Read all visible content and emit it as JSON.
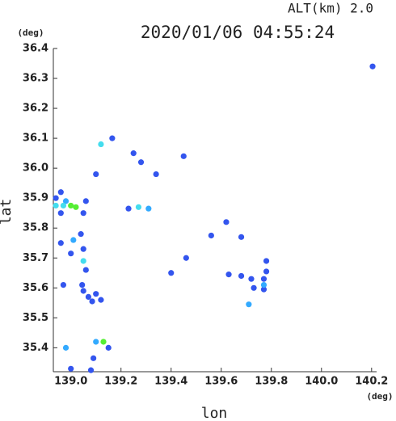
{
  "chart_data": {
    "type": "scatter",
    "title": "2020/01/06 04:55:24",
    "subtitle": "ALT(km) 2.0",
    "x_label": "lon",
    "y_label": "lat",
    "x_unit": "(deg)",
    "y_unit": "(deg)",
    "xlim": [
      138.93,
      140.22
    ],
    "ylim": [
      35.32,
      36.4
    ],
    "xticks": [
      {
        "value": 139.0,
        "label": "139.0"
      },
      139.2,
      139.4,
      139.6,
      139.8,
      {
        "value": 140.0,
        "label": "140.0"
      },
      140.2
    ],
    "yticks": [
      35.4,
      35.5,
      35.6,
      35.7,
      35.8,
      35.9,
      {
        "value": 36.0,
        "label": "36.0"
      },
      36.1,
      36.2,
      36.3,
      36.4
    ],
    "series": [
      {
        "color": "#3355ee",
        "x": [
          140.204,
          139.165,
          139.45,
          139.25,
          139.28,
          139.34,
          139.1,
          138.94,
          138.96,
          139.06,
          139.23,
          139.62,
          138.96,
          139.05,
          139.04,
          138.96,
          139.05,
          139.0,
          139.06,
          138.97,
          139.045,
          139.05,
          139.07,
          139.12,
          139.085,
          139.1,
          139.4,
          139.46,
          139.63,
          139.68,
          139.78,
          139.78,
          139.68,
          139.56,
          139.73,
          139.77,
          139.72,
          139.77,
          139.15,
          139.09,
          139.0,
          139.08
        ],
        "values": [
          36.34,
          36.1,
          36.04,
          36.05,
          36.02,
          35.98,
          35.98,
          35.9,
          35.92,
          35.89,
          35.865,
          35.82,
          35.85,
          35.85,
          35.78,
          35.75,
          35.73,
          35.715,
          35.66,
          35.61,
          35.61,
          35.59,
          35.57,
          35.56,
          35.555,
          35.58,
          35.65,
          35.7,
          35.645,
          35.64,
          35.655,
          35.69,
          35.77,
          35.775,
          35.6,
          35.63,
          35.63,
          35.595,
          35.4,
          35.365,
          35.33,
          35.325
        ]
      },
      {
        "color": "#33aaff",
        "x": [
          138.98,
          139.31,
          139.01,
          139.71,
          139.77,
          138.98,
          139.1
        ],
        "values": [
          35.89,
          35.865,
          35.76,
          35.545,
          35.61,
          35.4,
          35.42
        ]
      },
      {
        "color": "#44ddee",
        "x": [
          139.12,
          138.94,
          138.97,
          139.27,
          139.05
        ],
        "values": [
          36.08,
          35.875,
          35.875,
          35.87,
          35.69
        ]
      },
      {
        "color": "#55ee33",
        "x": [
          139.0,
          139.02,
          139.13
        ],
        "values": [
          35.875,
          35.87,
          35.42
        ]
      }
    ]
  }
}
